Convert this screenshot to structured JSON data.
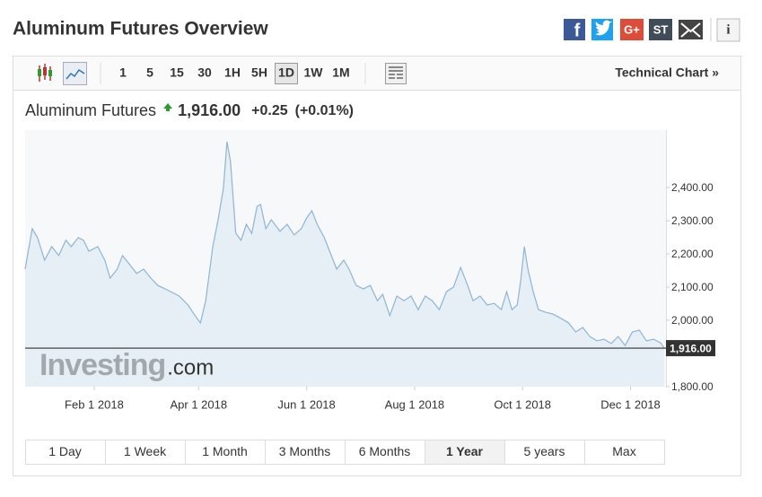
{
  "header": {
    "title": "Aluminum Futures Overview",
    "share_icons": [
      "f",
      "G+",
      "ST"
    ],
    "info": "i"
  },
  "toolbar": {
    "intervals": [
      "1",
      "5",
      "15",
      "30",
      "1H",
      "5H",
      "1D",
      "1W",
      "1M"
    ],
    "active": 6,
    "link": "Technical Chart »"
  },
  "quote": {
    "name": "Aluminum Futures",
    "price": "1,916.00",
    "change": "+0.25",
    "change_pct": "(+0.01%)"
  },
  "chart_data": {
    "type": "area",
    "color": "#8fb4d2",
    "fill": "#e4edf5",
    "watermark": [
      "Investing",
      ".com"
    ],
    "x": [
      "2017-12-24",
      "2017-12-28",
      "2017-12-31",
      "2018-01-04",
      "2018-01-08",
      "2018-01-12",
      "2018-01-16",
      "2018-01-19",
      "2018-01-23",
      "2018-01-26",
      "2018-01-29",
      "2018-02-03",
      "2018-02-07",
      "2018-02-10",
      "2018-02-14",
      "2018-02-17",
      "2018-02-21",
      "2018-02-25",
      "2018-03-01",
      "2018-03-05",
      "2018-03-09",
      "2018-03-13",
      "2018-03-17",
      "2018-03-21",
      "2018-03-26",
      "2018-03-30",
      "2018-04-02",
      "2018-04-05",
      "2018-04-09",
      "2018-04-12",
      "2018-04-15",
      "2018-04-17",
      "2018-04-19",
      "2018-04-22",
      "2018-04-25",
      "2018-04-28",
      "2018-05-01",
      "2018-05-04",
      "2018-05-06",
      "2018-05-09",
      "2018-05-12",
      "2018-05-17",
      "2018-05-21",
      "2018-05-25",
      "2018-05-29",
      "2018-06-01",
      "2018-06-04",
      "2018-06-07",
      "2018-06-11",
      "2018-06-15",
      "2018-06-18",
      "2018-06-22",
      "2018-06-25",
      "2018-06-29",
      "2018-07-03",
      "2018-07-07",
      "2018-07-11",
      "2018-07-14",
      "2018-07-18",
      "2018-07-22",
      "2018-07-26",
      "2018-07-30",
      "2018-08-03",
      "2018-08-07",
      "2018-08-11",
      "2018-08-15",
      "2018-08-19",
      "2018-08-23",
      "2018-08-27",
      "2018-08-31",
      "2018-09-03",
      "2018-09-07",
      "2018-09-11",
      "2018-09-15",
      "2018-09-19",
      "2018-09-22",
      "2018-09-25",
      "2018-09-28",
      "2018-09-30",
      "2018-10-02",
      "2018-10-04",
      "2018-10-07",
      "2018-10-10",
      "2018-10-14",
      "2018-10-18",
      "2018-10-23",
      "2018-10-27",
      "2018-10-31",
      "2018-11-04",
      "2018-11-08",
      "2018-11-12",
      "2018-11-16",
      "2018-11-20",
      "2018-11-24",
      "2018-11-28",
      "2018-12-02",
      "2018-12-06",
      "2018-12-10",
      "2018-12-14",
      "2018-12-18",
      "2018-12-20"
    ],
    "values": [
      2154,
      2276,
      2249,
      2181,
      2222,
      2195,
      2241,
      2222,
      2249,
      2241,
      2208,
      2222,
      2181,
      2127,
      2154,
      2195,
      2168,
      2141,
      2154,
      2127,
      2105,
      2095,
      2084,
      2073,
      2046,
      2014,
      1992,
      2059,
      2222,
      2303,
      2397,
      2538,
      2478,
      2262,
      2241,
      2289,
      2262,
      2343,
      2349,
      2276,
      2303,
      2268,
      2289,
      2257,
      2276,
      2308,
      2330,
      2289,
      2249,
      2195,
      2154,
      2181,
      2154,
      2105,
      2095,
      2105,
      2059,
      2078,
      2014,
      2073,
      2059,
      2073,
      2032,
      2073,
      2059,
      2032,
      2086,
      2100,
      2159,
      2105,
      2059,
      2073,
      2046,
      2051,
      2032,
      2086,
      2032,
      2046,
      2122,
      2222,
      2154,
      2086,
      2032,
      2024,
      2019,
      2005,
      1992,
      1965,
      1978,
      1951,
      1938,
      1943,
      1930,
      1951,
      1924,
      1965,
      1970,
      1938,
      1943,
      1932,
      1916
    ],
    "xlim": [
      "2017-12-24",
      "2018-12-21"
    ],
    "xticks": [
      {
        "value": "2018-02-01",
        "label": "Feb 1 2018"
      },
      {
        "value": "2018-04-01",
        "label": "Apr 1 2018"
      },
      {
        "value": "2018-06-01",
        "label": "Jun 1 2018"
      },
      {
        "value": "2018-08-01",
        "label": "Aug 1 2018"
      },
      {
        "value": "2018-10-01",
        "label": "Oct 1 2018"
      },
      {
        "value": "2018-12-01",
        "label": "Dec 1 2018"
      }
    ],
    "ylim": [
      1800,
      2573
    ],
    "yticks": [
      {
        "value": 1800,
        "label": "1,800.00"
      },
      {
        "value": 2000,
        "label": "2,000.00"
      },
      {
        "value": 2100,
        "label": "2,100.00"
      },
      {
        "value": 2200,
        "label": "2,200.00"
      },
      {
        "value": 2300,
        "label": "2,300.00"
      },
      {
        "value": 2400,
        "label": "2,400.00"
      }
    ],
    "current_line": {
      "value": 1916,
      "label": "1,916.00"
    }
  },
  "ranges": {
    "items": [
      "1 Day",
      "1 Week",
      "1 Month",
      "3 Months",
      "6 Months",
      "1 Year",
      "5 years",
      "Max"
    ],
    "active": 5
  }
}
